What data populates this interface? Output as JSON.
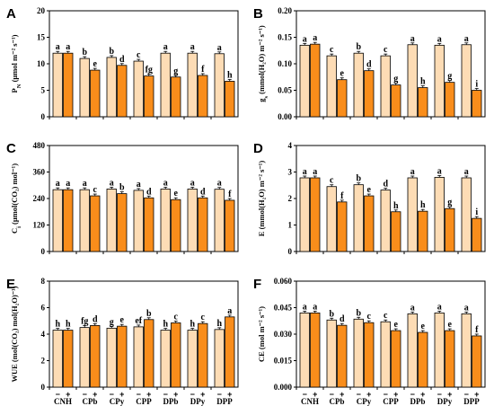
{
  "colors": {
    "control": "#fddcb5",
    "treated": "#f98d1b",
    "stroke": "#000000",
    "error_bar": "#000000"
  },
  "chart_data": [
    {
      "type": "bar",
      "panel": "A",
      "ylabel": "P_N (μmol m⁻² s⁻¹)",
      "ylim": [
        0,
        20
      ],
      "yticks": [
        "0",
        "5",
        "10",
        "15",
        "20"
      ],
      "categories": [
        "CNH",
        "CPb",
        "CPy",
        "CPP",
        "DPb",
        "DPy",
        "DPP"
      ],
      "treatment_labels": [
        "−",
        "+"
      ],
      "control": [
        12.0,
        11.0,
        11.2,
        10.5,
        12.0,
        12.0,
        11.9
      ],
      "treated": [
        12.0,
        8.8,
        9.7,
        7.7,
        7.5,
        7.8,
        6.7
      ],
      "letters_control": [
        "a",
        "b",
        "b",
        "c",
        "a",
        "a",
        "a"
      ],
      "letters_treated": [
        "a",
        "e",
        "d",
        "fg",
        "g",
        "f",
        "h"
      ]
    },
    {
      "type": "bar",
      "panel": "B",
      "ylabel": "g_s (mmol(H₂O) m⁻² s⁻¹)",
      "ylim": [
        0,
        0.2
      ],
      "yticks": [
        "0.00",
        "0.05",
        "0.10",
        "0.15",
        "0.20"
      ],
      "categories": [
        "CNH",
        "CPb",
        "CPy",
        "CPP",
        "DPb",
        "DPy",
        "DPP"
      ],
      "treatment_labels": [
        "−",
        "+"
      ],
      "control": [
        0.135,
        0.115,
        0.12,
        0.115,
        0.136,
        0.135,
        0.136
      ],
      "treated": [
        0.137,
        0.07,
        0.087,
        0.06,
        0.055,
        0.065,
        0.05
      ],
      "letters_control": [
        "a",
        "c",
        "b",
        "c",
        "a",
        "a",
        "a"
      ],
      "letters_treated": [
        "a",
        "e",
        "d",
        "g",
        "h",
        "g",
        "i"
      ]
    },
    {
      "type": "bar",
      "panel": "C",
      "ylabel": "C_i (μmol(CO₂) mol⁻¹)",
      "ylim": [
        0,
        480
      ],
      "yticks": [
        "0",
        "120",
        "240",
        "360",
        "480"
      ],
      "categories": [
        "CNH",
        "CPb",
        "CPy",
        "CPP",
        "DPb",
        "DPy",
        "DPP"
      ],
      "treatment_labels": [
        "−",
        "+"
      ],
      "control": [
        280,
        280,
        283,
        277,
        283,
        283,
        282
      ],
      "treated": [
        280,
        252,
        262,
        243,
        235,
        243,
        232
      ],
      "letters_control": [
        "a",
        "a",
        "a",
        "a",
        "a",
        "a",
        "a"
      ],
      "letters_treated": [
        "a",
        "c",
        "b",
        "d",
        "e",
        "d",
        "f"
      ]
    },
    {
      "type": "bar",
      "panel": "D",
      "ylabel": "E (mmol(H₂O) m⁻² s⁻¹)",
      "ylim": [
        0,
        4
      ],
      "yticks": [
        "0",
        "1",
        "2",
        "3",
        "4"
      ],
      "categories": [
        "CNH",
        "CPb",
        "CPy",
        "CPP",
        "DPb",
        "DPy",
        "DPP"
      ],
      "treatment_labels": [
        "−",
        "+"
      ],
      "control": [
        2.78,
        2.45,
        2.52,
        2.32,
        2.78,
        2.8,
        2.78
      ],
      "treated": [
        2.78,
        1.87,
        2.1,
        1.5,
        1.52,
        1.62,
        1.25
      ],
      "letters_control": [
        "a",
        "c",
        "b",
        "d",
        "a",
        "a",
        "a"
      ],
      "letters_treated": [
        "a",
        "f",
        "e",
        "h",
        "h",
        "g",
        "i"
      ]
    },
    {
      "type": "bar",
      "panel": "E",
      "ylabel": "WUE (mol(CO₂) mol(H₂O)⁻¹)",
      "ylim": [
        0,
        8
      ],
      "yticks": [
        "0",
        "2",
        "4",
        "6",
        "8"
      ],
      "categories": [
        "CNH",
        "CPb",
        "CPy",
        "CPP",
        "DPb",
        "DPy",
        "DPP"
      ],
      "treatment_labels": [
        "−",
        "+"
      ],
      "control": [
        4.3,
        4.5,
        4.45,
        4.55,
        4.3,
        4.3,
        4.35
      ],
      "treated": [
        4.3,
        4.65,
        4.6,
        5.1,
        4.85,
        4.8,
        5.3
      ],
      "letters_control": [
        "h",
        "fg",
        "g",
        "ef",
        "h",
        "h",
        "h"
      ],
      "letters_treated": [
        "h",
        "d",
        "e",
        "b",
        "c",
        "c",
        "a"
      ]
    },
    {
      "type": "bar",
      "panel": "F",
      "ylabel": "CE (mol m⁻² s⁻¹)",
      "ylim": [
        0,
        0.06
      ],
      "yticks": [
        "0.000",
        "0.015",
        "0.030",
        "0.045",
        "0.060"
      ],
      "categories": [
        "CNH",
        "CPb",
        "CPy",
        "CPP",
        "DPb",
        "DPy",
        "DPP"
      ],
      "treatment_labels": [
        "−",
        "+"
      ],
      "control": [
        0.042,
        0.038,
        0.0385,
        0.037,
        0.0415,
        0.042,
        0.0415
      ],
      "treated": [
        0.042,
        0.035,
        0.0365,
        0.032,
        0.031,
        0.032,
        0.029
      ],
      "letters_control": [
        "a",
        "b",
        "b",
        "c",
        "a",
        "a",
        "a"
      ],
      "letters_treated": [
        "a",
        "d",
        "c",
        "e",
        "e",
        "e",
        "f"
      ]
    }
  ]
}
